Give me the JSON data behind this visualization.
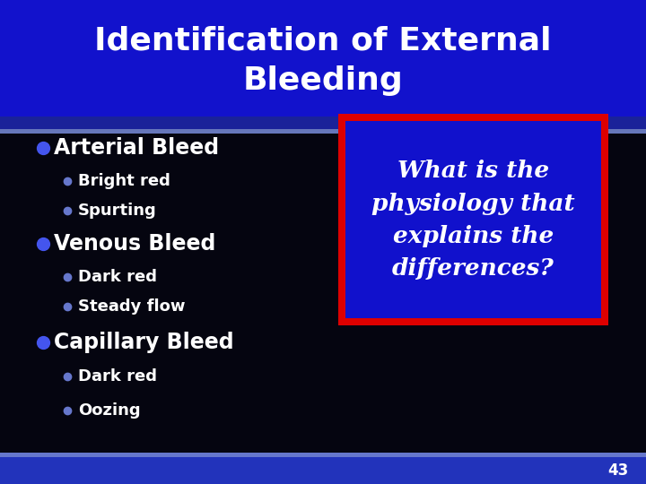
{
  "title_line1": "Identification of External",
  "title_line2": "Bleeding",
  "title_bg": "#1212CC",
  "title_text_color": "#FFFFFF",
  "body_bg": "#050510",
  "bullet_color": "#4455EE",
  "sub_bullet_color": "#6677CC",
  "main_items": [
    {
      "label": "Arterial Bleed",
      "sub": [
        "Bright red",
        "Spurting"
      ]
    },
    {
      "label": "Venous Bleed",
      "sub": [
        "Dark red",
        "Steady flow"
      ]
    },
    {
      "label": "Capillary Bleed",
      "sub": [
        "Dark red",
        "Oozing"
      ]
    }
  ],
  "box_text": "What is the\nphysiology that\nexplains the\ndifferences?",
  "box_bg": "#1111CC",
  "box_border": "#DD0000",
  "box_text_color": "#FFFFFF",
  "page_num": "43",
  "footer_color": "#2233BB",
  "footer_highlight": "#6677CC",
  "sep_dark": "#1A2299",
  "sep_light": "#6677BB"
}
